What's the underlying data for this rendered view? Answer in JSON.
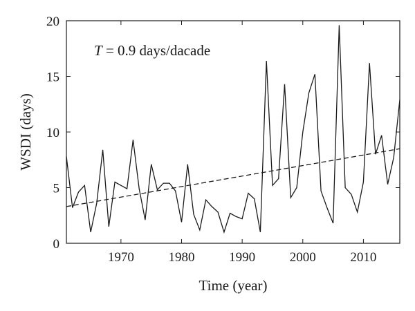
{
  "chart_data": {
    "type": "line",
    "xlabel": "Time (year)",
    "ylabel": "WSDI (days)",
    "annotation": {
      "italic": "T",
      "rest": " = 0.9 days/dacade"
    },
    "xlim": [
      1961,
      2016
    ],
    "ylim": [
      0,
      20
    ],
    "xticks": [
      1970,
      1980,
      1990,
      2000,
      2010
    ],
    "yticks": [
      0,
      5,
      10,
      15,
      20
    ],
    "grid": false,
    "series": [
      {
        "style": "solid",
        "color": "#1a1a1a",
        "x": [
          1961,
          1962,
          1963,
          1964,
          1965,
          1966,
          1967,
          1968,
          1969,
          1970,
          1971,
          1972,
          1973,
          1974,
          1975,
          1976,
          1977,
          1978,
          1979,
          1980,
          1981,
          1982,
          1983,
          1984,
          1985,
          1986,
          1987,
          1988,
          1989,
          1990,
          1991,
          1992,
          1993,
          1994,
          1995,
          1996,
          1997,
          1998,
          1999,
          2000,
          2001,
          2002,
          2003,
          2004,
          2005,
          2006,
          2007,
          2008,
          2009,
          2010,
          2011,
          2012,
          2013,
          2014,
          2015,
          2016
        ],
        "values": [
          7.8,
          3.2,
          4.6,
          5.2,
          1.0,
          3.6,
          8.4,
          1.5,
          5.5,
          5.2,
          4.9,
          9.3,
          4.9,
          2.1,
          7.1,
          4.8,
          5.4,
          5.4,
          4.7,
          1.9,
          7.1,
          2.6,
          1.2,
          3.9,
          3.3,
          2.8,
          1.0,
          2.7,
          2.4,
          2.2,
          4.5,
          4.0,
          1.0,
          16.4,
          5.2,
          5.8,
          14.3,
          4.1,
          5.0,
          10.0,
          13.5,
          15.2,
          4.7,
          3.2,
          1.8,
          19.6,
          5.0,
          4.4,
          2.8,
          5.5,
          16.2,
          8.0,
          9.7,
          5.3,
          7.7,
          12.9
        ]
      },
      {
        "style": "dashed",
        "color": "#1a1a1a",
        "x": [
          1961,
          2016
        ],
        "values": [
          3.3,
          8.5
        ]
      }
    ]
  }
}
